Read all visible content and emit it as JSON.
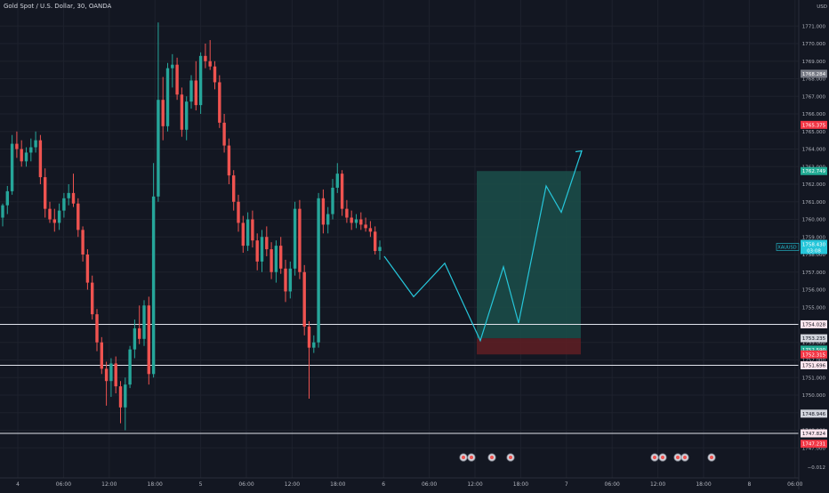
{
  "header": {
    "symbol_title": "Gold Spot / U.S. Dollar, 30, OANDA"
  },
  "price_axis": {
    "currency_label": "USD",
    "ticks": [
      "1771.000",
      "1770.000",
      "1769.000",
      "1768.000",
      "1767.000",
      "1766.000",
      "1765.000",
      "1764.000",
      "1763.000",
      "1762.000",
      "1761.000",
      "1760.000",
      "1759.000",
      "1758.000",
      "1757.000",
      "1756.000",
      "1755.000",
      "1754.000",
      "1753.000",
      "1752.000",
      "1751.000",
      "1750.000",
      "1749.000",
      "1748.000",
      "1747.000"
    ],
    "tick_values": [
      1771,
      1770,
      1769,
      1768,
      1767,
      1766,
      1765,
      1764,
      1763,
      1762,
      1761,
      1760,
      1759,
      1758,
      1757,
      1756,
      1755,
      1754,
      1753,
      1752,
      1751,
      1750,
      1749,
      1748,
      1747
    ],
    "bottom_label": "−0.012"
  },
  "time_axis": {
    "labels": [
      "4",
      "06:00",
      "12:00",
      "18:00",
      "5",
      "06:00",
      "12:00",
      "18:00",
      "6",
      "06:00",
      "12:00",
      "18:00",
      "7",
      "06:00",
      "12:00",
      "18:00",
      "8",
      "06:00"
    ]
  },
  "price_labels": [
    {
      "text": "1768.284",
      "value": 1768.284,
      "color": "#787b86"
    },
    {
      "text": "1765.375",
      "value": 1765.375,
      "color": "#f23645"
    },
    {
      "text": "1762.749",
      "value": 1762.749,
      "color": "#22ab94"
    },
    {
      "text": "1754.028",
      "value": 1754.028,
      "color": "#fce4ec"
    },
    {
      "text": "1753.235",
      "value": 1753.235,
      "color": "#d1d4dc"
    },
    {
      "text": "1752.590",
      "value": 1752.59,
      "color": "#22ab94"
    },
    {
      "text": "1752.315",
      "value": 1752.315,
      "color": "#f23645"
    },
    {
      "text": "1751.696",
      "value": 1751.696,
      "color": "#fce4ec"
    },
    {
      "text": "1748.946",
      "value": 1748.946,
      "color": "#d1d4dc"
    },
    {
      "text": "1747.824",
      "value": 1747.824,
      "color": "#fce4ec"
    },
    {
      "text": "1747.231",
      "value": 1747.231,
      "color": "#f23645"
    }
  ],
  "current_price": {
    "symbol": "XAUUSD",
    "text": "1758.430",
    "countdown": "03:08",
    "value": 1758.43,
    "color": "#26c6da"
  },
  "horizontal_lines": [
    1754.028,
    1751.696,
    1747.824
  ],
  "position_tool": {
    "entry": 1753.235,
    "target": 1762.749,
    "stop": 1752.315
  },
  "projection_path": [
    1757.9,
    1755.6,
    1757.5,
    1753.1,
    1757.3,
    1754.1,
    1761.9,
    1760.4,
    1763.9
  ],
  "event_markers": 7,
  "colors": {
    "background": "#131722",
    "up": "#26a69a",
    "down": "#ef5350",
    "grid": "#1e222d",
    "projection": "#26c6da",
    "target_zone": "#1b4f4a",
    "stop_zone": "#5c1e24"
  },
  "chart_data": {
    "type": "candlestick",
    "title": "Gold Spot / U.S. Dollar, 30, OANDA",
    "ylim": [
      1746.8,
      1772.0
    ],
    "ohlc": [
      [
        1760.1,
        1760.9,
        1759.6,
        1760.8
      ],
      [
        1760.8,
        1761.9,
        1760.3,
        1761.6
      ],
      [
        1761.6,
        1764.8,
        1761.4,
        1764.3
      ],
      [
        1764.3,
        1765.0,
        1763.5,
        1764.0
      ],
      [
        1764.0,
        1764.5,
        1763.0,
        1763.3
      ],
      [
        1763.3,
        1764.1,
        1763.0,
        1763.8
      ],
      [
        1763.8,
        1764.6,
        1763.3,
        1764.1
      ],
      [
        1764.1,
        1765.0,
        1763.8,
        1764.5
      ],
      [
        1764.5,
        1764.8,
        1762.0,
        1762.4
      ],
      [
        1762.4,
        1762.9,
        1760.1,
        1760.6
      ],
      [
        1760.6,
        1761.0,
        1759.8,
        1760.0
      ],
      [
        1760.0,
        1760.6,
        1759.3,
        1759.8
      ],
      [
        1759.8,
        1760.9,
        1759.4,
        1760.5
      ],
      [
        1760.5,
        1761.5,
        1760.1,
        1761.2
      ],
      [
        1761.2,
        1762.0,
        1760.8,
        1761.5
      ],
      [
        1761.5,
        1762.6,
        1760.7,
        1760.9
      ],
      [
        1760.9,
        1761.2,
        1759.0,
        1759.4
      ],
      [
        1759.4,
        1759.6,
        1757.6,
        1758.0
      ],
      [
        1758.0,
        1758.3,
        1756.0,
        1756.4
      ],
      [
        1756.4,
        1756.8,
        1754.3,
        1754.6
      ],
      [
        1754.6,
        1754.9,
        1752.5,
        1753.0
      ],
      [
        1753.0,
        1753.3,
        1751.2,
        1751.5
      ],
      [
        1751.5,
        1751.9,
        1749.4,
        1750.8
      ],
      [
        1750.8,
        1752.1,
        1749.9,
        1751.8
      ],
      [
        1751.8,
        1752.2,
        1750.1,
        1750.5
      ],
      [
        1750.5,
        1750.8,
        1748.4,
        1749.3
      ],
      [
        1749.3,
        1751.0,
        1748.0,
        1750.6
      ],
      [
        1750.6,
        1752.8,
        1750.4,
        1752.6
      ],
      [
        1752.6,
        1754.3,
        1752.1,
        1753.8
      ],
      [
        1753.8,
        1755.1,
        1752.9,
        1753.2
      ],
      [
        1753.2,
        1755.4,
        1752.8,
        1755.1
      ],
      [
        1755.1,
        1755.6,
        1750.6,
        1751.2
      ],
      [
        1751.2,
        1763.2,
        1751.0,
        1761.3
      ],
      [
        1761.3,
        1771.2,
        1761.0,
        1766.8
      ],
      [
        1766.8,
        1768.1,
        1764.5,
        1765.3
      ],
      [
        1765.3,
        1768.9,
        1765.0,
        1768.6
      ],
      [
        1768.6,
        1769.4,
        1767.5,
        1768.8
      ],
      [
        1768.8,
        1769.2,
        1766.8,
        1767.1
      ],
      [
        1767.1,
        1767.5,
        1764.7,
        1765.1
      ],
      [
        1765.1,
        1767.0,
        1764.5,
        1766.7
      ],
      [
        1766.7,
        1768.2,
        1766.3,
        1767.9
      ],
      [
        1767.9,
        1769.0,
        1766.2,
        1766.5
      ],
      [
        1766.5,
        1769.5,
        1766.0,
        1769.3
      ],
      [
        1769.3,
        1770.0,
        1768.6,
        1769.0
      ],
      [
        1769.0,
        1770.2,
        1768.5,
        1768.7
      ],
      [
        1768.7,
        1769.0,
        1767.4,
        1767.8
      ],
      [
        1767.8,
        1768.2,
        1765.2,
        1765.5
      ],
      [
        1765.5,
        1766.0,
        1763.8,
        1764.2
      ],
      [
        1764.2,
        1764.6,
        1762.0,
        1762.5
      ],
      [
        1762.5,
        1762.8,
        1760.5,
        1761.0
      ],
      [
        1761.0,
        1761.4,
        1759.3,
        1759.8
      ],
      [
        1759.8,
        1760.2,
        1758.1,
        1758.5
      ],
      [
        1758.5,
        1760.4,
        1758.2,
        1760.0
      ],
      [
        1760.0,
        1760.5,
        1758.4,
        1758.8
      ],
      [
        1758.8,
        1759.2,
        1757.1,
        1757.6
      ],
      [
        1757.6,
        1759.4,
        1757.0,
        1759.0
      ],
      [
        1759.0,
        1759.6,
        1757.9,
        1758.3
      ],
      [
        1758.3,
        1758.7,
        1756.6,
        1757.0
      ],
      [
        1757.0,
        1758.8,
        1756.4,
        1758.5
      ],
      [
        1758.5,
        1759.0,
        1756.9,
        1757.2
      ],
      [
        1757.2,
        1757.7,
        1755.3,
        1755.9
      ],
      [
        1755.9,
        1757.6,
        1755.5,
        1757.2
      ],
      [
        1757.2,
        1761.0,
        1756.8,
        1760.6
      ],
      [
        1760.6,
        1761.1,
        1756.6,
        1757.0
      ],
      [
        1757.0,
        1757.4,
        1753.4,
        1753.9
      ],
      [
        1753.9,
        1754.2,
        1749.8,
        1752.7
      ],
      [
        1752.7,
        1753.4,
        1752.4,
        1753.0
      ],
      [
        1753.0,
        1761.5,
        1752.7,
        1761.2
      ],
      [
        1761.2,
        1761.7,
        1759.2,
        1759.7
      ],
      [
        1759.7,
        1760.7,
        1759.2,
        1760.3
      ],
      [
        1760.3,
        1762.3,
        1760.0,
        1761.8
      ],
      [
        1761.8,
        1763.2,
        1761.5,
        1762.6
      ],
      [
        1762.6,
        1762.8,
        1760.2,
        1760.6
      ],
      [
        1760.6,
        1761.1,
        1759.8,
        1760.1
      ],
      [
        1760.1,
        1760.5,
        1759.4,
        1759.8
      ],
      [
        1759.8,
        1760.3,
        1759.5,
        1760.0
      ],
      [
        1760.0,
        1760.4,
        1759.4,
        1759.7
      ],
      [
        1759.7,
        1760.1,
        1759.3,
        1759.5
      ],
      [
        1759.5,
        1759.9,
        1759.0,
        1759.3
      ],
      [
        1759.3,
        1759.6,
        1758.0,
        1758.2
      ],
      [
        1758.2,
        1758.8,
        1757.7,
        1758.43
      ]
    ]
  }
}
